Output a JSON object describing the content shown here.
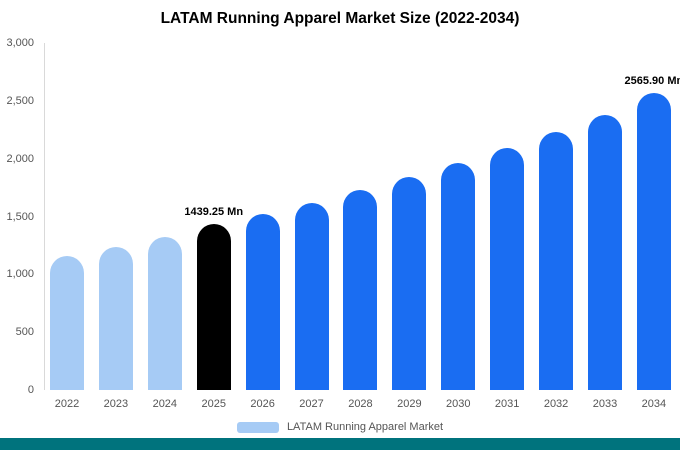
{
  "title": "LATAM Running Apparel Market Size (2022-2034)",
  "chart_data": {
    "type": "bar",
    "title": "LATAM Running Apparel Market Size (2022-2034)",
    "xlabel": "",
    "ylabel": "",
    "ylim": [
      0,
      3000
    ],
    "yticks": [
      0,
      500,
      1000,
      1500,
      2000,
      2500,
      3000
    ],
    "ytick_labels": [
      "0",
      "500",
      "1,000",
      "1,500",
      "2,000",
      "2,500",
      "3,000"
    ],
    "grid": false,
    "legend_position": "bottom",
    "unit": "Mn",
    "categories": [
      "2022",
      "2023",
      "2024",
      "2025",
      "2026",
      "2027",
      "2028",
      "2029",
      "2030",
      "2031",
      "2032",
      "2033",
      "2034"
    ],
    "points": [
      {
        "year": "2022",
        "value": 1160,
        "color": "historical",
        "label": ""
      },
      {
        "year": "2023",
        "value": 1240,
        "color": "historical",
        "label": ""
      },
      {
        "year": "2024",
        "value": 1320,
        "color": "historical",
        "label": ""
      },
      {
        "year": "2025",
        "value": 1439.25,
        "color": "base_year",
        "label": "1439.25 Mn"
      },
      {
        "year": "2026",
        "value": 1520,
        "color": "forecast",
        "label": ""
      },
      {
        "year": "2027",
        "value": 1620,
        "color": "forecast",
        "label": ""
      },
      {
        "year": "2028",
        "value": 1730,
        "color": "forecast",
        "label": ""
      },
      {
        "year": "2029",
        "value": 1840,
        "color": "forecast",
        "label": ""
      },
      {
        "year": "2030",
        "value": 1960,
        "color": "forecast",
        "label": ""
      },
      {
        "year": "2031",
        "value": 2090,
        "color": "forecast",
        "label": ""
      },
      {
        "year": "2032",
        "value": 2230,
        "color": "forecast",
        "label": ""
      },
      {
        "year": "2033",
        "value": 2380,
        "color": "forecast",
        "label": ""
      },
      {
        "year": "2034",
        "value": 2565.9,
        "color": "forecast",
        "label": "2565.90 Mn"
      }
    ],
    "colors": {
      "historical": "#a6cbf5",
      "base_year": "#000000",
      "forecast": "#1a6df2"
    }
  },
  "legend": {
    "label": "LATAM Running Apparel Market",
    "swatch_color": "#a6cbf5"
  },
  "footer": {
    "strip_color": "#00737d"
  }
}
